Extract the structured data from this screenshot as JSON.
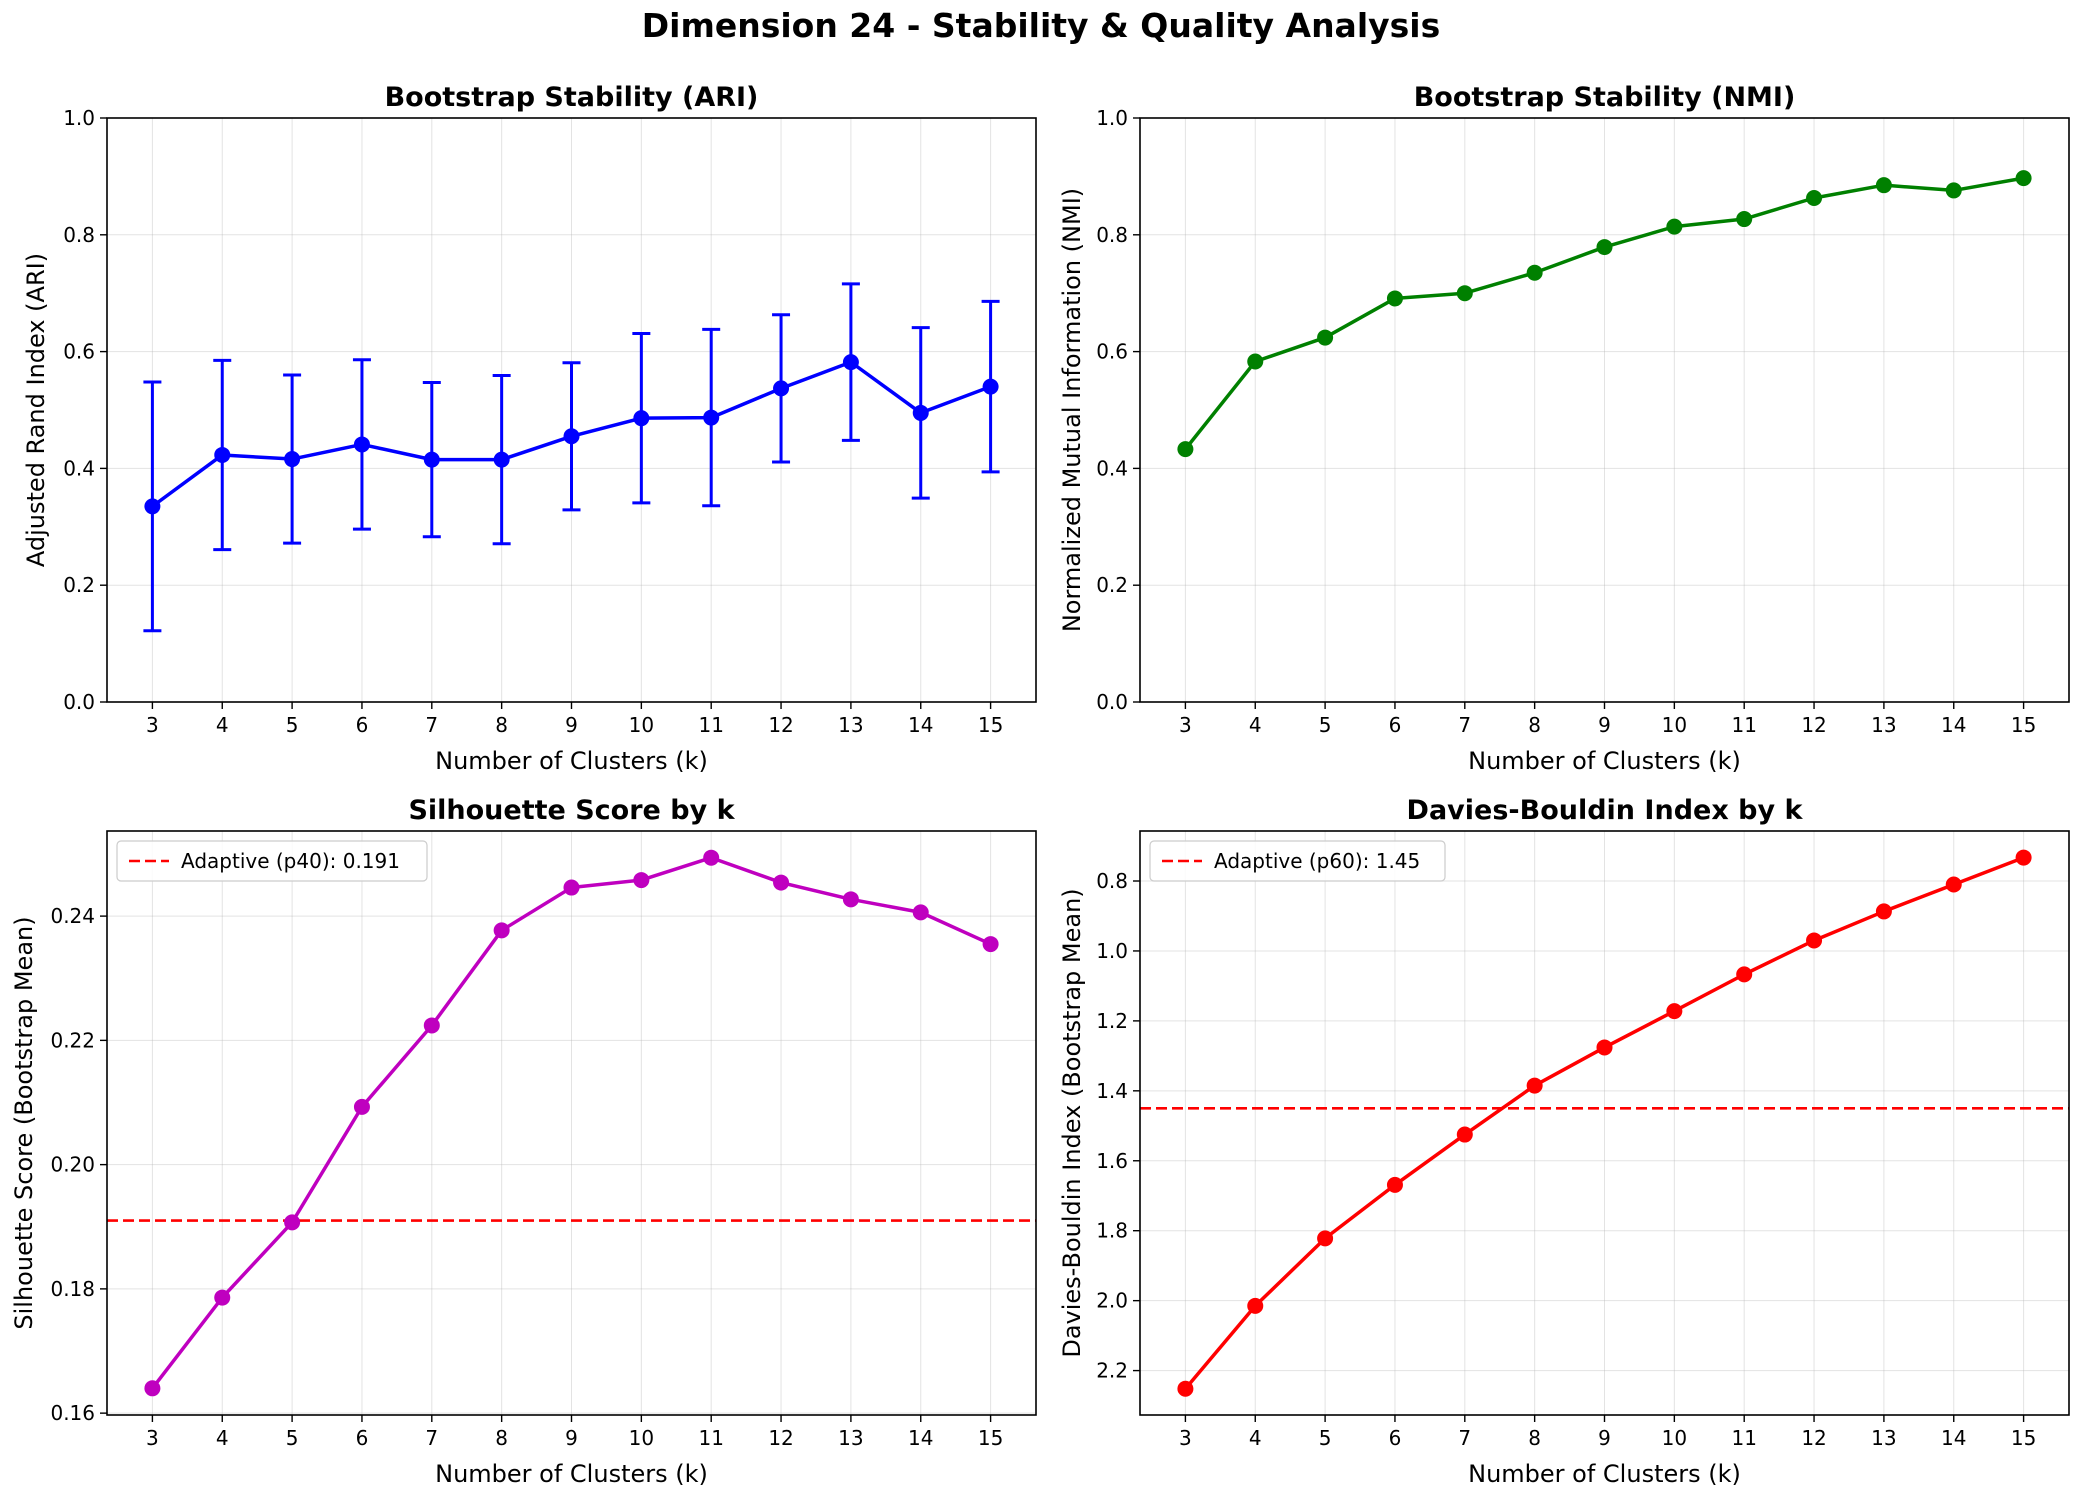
{
  "figure": {
    "title": "Dimension 24 - Stability & Quality Analysis"
  },
  "chart_data": [
    {
      "type": "line",
      "title": "Bootstrap Stability (ARI)",
      "xlabel": "Number of Clusters (k)",
      "ylabel": "Adjusted Rand Index (ARI)",
      "x": [
        3,
        4,
        5,
        6,
        7,
        8,
        9,
        10,
        11,
        12,
        13,
        14,
        15
      ],
      "xlim": [
        2.35,
        15.65
      ],
      "ylim": [
        0,
        1.0
      ],
      "invert_y": false,
      "yticks": [
        0.0,
        0.2,
        0.4,
        0.6,
        0.8,
        1.0
      ],
      "ytick_labels": [
        "0.0",
        "0.2",
        "0.4",
        "0.6",
        "0.8",
        "1.0"
      ],
      "grid": true,
      "series": [
        {
          "color": "#0000ff",
          "values": [
            0.335,
            0.423,
            0.416,
            0.441,
            0.415,
            0.415,
            0.455,
            0.486,
            0.487,
            0.537,
            0.582,
            0.495,
            0.54
          ],
          "error": [
            0.213,
            0.162,
            0.144,
            0.145,
            0.132,
            0.144,
            0.126,
            0.145,
            0.151,
            0.126,
            0.134,
            0.146,
            0.146
          ]
        }
      ],
      "hline": null,
      "legend": null
    },
    {
      "type": "line",
      "title": "Bootstrap Stability (NMI)",
      "xlabel": "Number of Clusters (k)",
      "ylabel": "Normalized Mutual Information (NMI)",
      "x": [
        3,
        4,
        5,
        6,
        7,
        8,
        9,
        10,
        11,
        12,
        13,
        14,
        15
      ],
      "xlim": [
        2.35,
        15.65
      ],
      "ylim": [
        0,
        1.0
      ],
      "invert_y": false,
      "yticks": [
        0.0,
        0.2,
        0.4,
        0.6,
        0.8,
        1.0
      ],
      "ytick_labels": [
        "0.0",
        "0.2",
        "0.4",
        "0.6",
        "0.8",
        "1.0"
      ],
      "grid": true,
      "series": [
        {
          "color": "#008000",
          "values": [
            0.433,
            0.583,
            0.624,
            0.691,
            0.7,
            0.735,
            0.779,
            0.814,
            0.827,
            0.863,
            0.885,
            0.876,
            0.897
          ]
        }
      ],
      "hline": null,
      "legend": null
    },
    {
      "type": "line",
      "title": "Silhouette Score by k",
      "xlabel": "Number of Clusters (k)",
      "ylabel": "Silhouette Score (Bootstrap Mean)",
      "x": [
        3,
        4,
        5,
        6,
        7,
        8,
        9,
        10,
        11,
        12,
        13,
        14,
        15
      ],
      "xlim": [
        2.35,
        15.65
      ],
      "ylim": [
        0.1597,
        0.2537
      ],
      "invert_y": false,
      "yticks": [
        0.16,
        0.18,
        0.2,
        0.22,
        0.24
      ],
      "ytick_labels": [
        "0.16",
        "0.18",
        "0.20",
        "0.22",
        "0.24"
      ],
      "grid": true,
      "series": [
        {
          "color": "#bf00bf",
          "values": [
            0.164,
            0.1786,
            0.1907,
            0.2093,
            0.2224,
            0.2377,
            0.2446,
            0.2458,
            0.2494,
            0.2454,
            0.2427,
            0.2406,
            0.2355
          ]
        }
      ],
      "hline": {
        "value": 0.191,
        "color": "#ff0000",
        "label": "Adaptive (p40): 0.191"
      },
      "legend": "upper-left"
    },
    {
      "type": "line",
      "title": "Davies-Bouldin Index by k",
      "xlabel": "Number of Clusters (k)",
      "ylabel": "Davies-Bouldin Index (Bootstrap Mean)",
      "x": [
        3,
        4,
        5,
        6,
        7,
        8,
        9,
        10,
        11,
        12,
        13,
        14,
        15
      ],
      "xlim": [
        2.35,
        15.65
      ],
      "ylim": [
        2.327,
        0.657
      ],
      "invert_y": true,
      "yticks": [
        0.8,
        1.0,
        1.2,
        1.4,
        1.6,
        1.8,
        2.0,
        2.2
      ],
      "ytick_labels": [
        "0.8",
        "1.0",
        "1.2",
        "1.4",
        "1.6",
        "1.8",
        "2.0",
        "2.2"
      ],
      "grid": true,
      "series": [
        {
          "color": "#ff0000",
          "values": [
            2.252,
            2.015,
            1.822,
            1.669,
            1.525,
            1.385,
            1.276,
            1.172,
            1.067,
            0.97,
            0.887,
            0.81,
            0.733
          ]
        }
      ],
      "hline": {
        "value": 1.45,
        "color": "#ff0000",
        "label": "Adaptive (p60): 1.45"
      },
      "legend": "upper-left"
    }
  ]
}
